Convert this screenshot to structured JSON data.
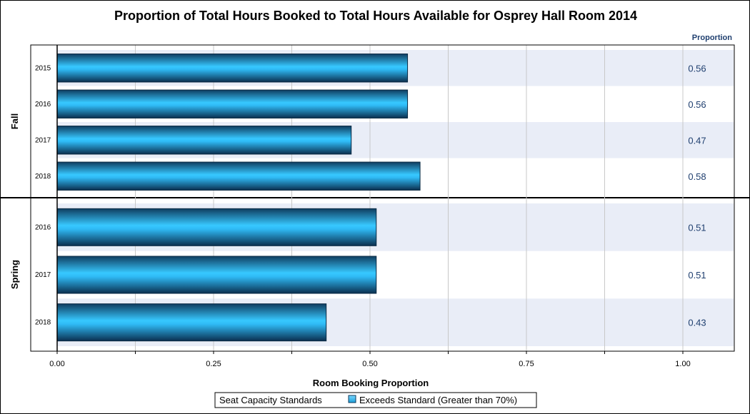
{
  "chart_data": {
    "type": "bar",
    "orientation": "horizontal",
    "title": "Proportion of Total Hours Booked to Total Hours Available for Osprey Hall Room 2014",
    "xlabel": "Room Booking Proportion",
    "xlim": [
      0,
      1.0
    ],
    "xticks": [
      "0.00",
      "0.25",
      "0.50",
      "0.75",
      "1.00"
    ],
    "grid": true,
    "value_column_header": "Proportion",
    "groups": [
      {
        "name": "Fall",
        "categories": [
          "2015",
          "2016",
          "2017",
          "2018"
        ],
        "values": [
          0.56,
          0.56,
          0.47,
          0.58
        ],
        "value_labels": [
          "0.56",
          "0.56",
          "0.47",
          "0.58"
        ]
      },
      {
        "name": "Spring",
        "categories": [
          "2016",
          "2017",
          "2018"
        ],
        "values": [
          0.51,
          0.51,
          0.43
        ],
        "value_labels": [
          "0.51",
          "0.51",
          "0.43"
        ]
      }
    ],
    "legend": {
      "placement": "bottom",
      "title": "Seat Capacity Standards",
      "entries": [
        "Exceeds Standard (Greater than 70%)"
      ]
    },
    "colors": {
      "bar_light": "#33ccff",
      "bar_dark": "#0d3a5c",
      "band": "#e9edf7",
      "value_label": "#1f3f6f"
    }
  }
}
